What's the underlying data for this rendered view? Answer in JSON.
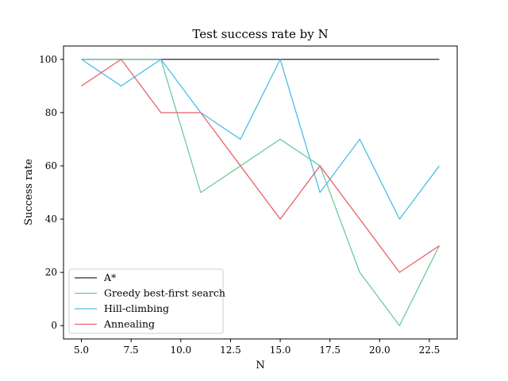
{
  "chart_data": {
    "type": "line",
    "title": "Test success rate by N",
    "xlabel": "N",
    "ylabel": "Success rate",
    "xlim": [
      4.1,
      23.9
    ],
    "ylim": [
      -5,
      105
    ],
    "xticks": [
      "5.0",
      "7.5",
      "10.0",
      "12.5",
      "15.0",
      "17.5",
      "20.0",
      "22.5"
    ],
    "yticks": [
      "0",
      "20",
      "40",
      "60",
      "80",
      "100"
    ],
    "grid": false,
    "legend_position": "lower-left",
    "x": [
      5,
      7,
      9,
      11,
      13,
      15,
      17,
      19,
      21,
      23
    ],
    "series": [
      {
        "name": "A*",
        "color": "#1c2a45",
        "values": [
          100,
          100,
          100,
          100,
          100,
          100,
          100,
          100,
          100,
          100
        ]
      },
      {
        "name": "Greedy best-first search",
        "color": "#6ccaa0",
        "values": [
          100,
          100,
          100,
          50,
          60,
          70,
          60,
          20,
          0,
          30
        ]
      },
      {
        "name": "Hill-climbing",
        "color": "#4dbde8",
        "values": [
          100,
          90,
          100,
          80,
          70,
          100,
          50,
          70,
          40,
          60
        ]
      },
      {
        "name": "Annealing",
        "color": "#e8636a",
        "values": [
          90,
          100,
          80,
          80,
          60,
          40,
          60,
          40,
          20,
          30
        ]
      }
    ]
  }
}
